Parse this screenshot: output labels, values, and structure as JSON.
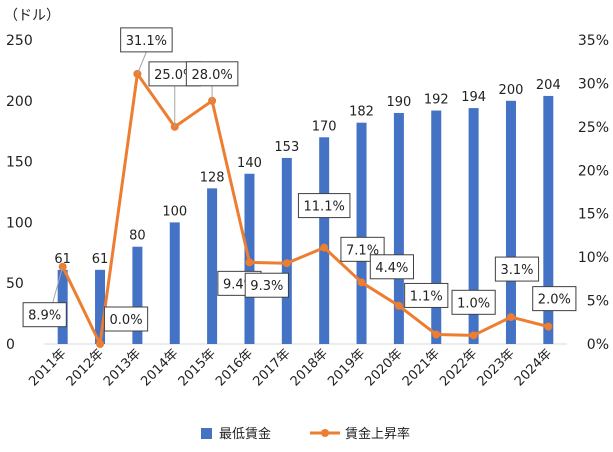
{
  "chart_data": {
    "type": "bar+line",
    "unit_label": "（ドル）",
    "categories": [
      "2011年",
      "2012年",
      "2013年",
      "2014年",
      "2015年",
      "2016年",
      "2017年",
      "2018年",
      "2019年",
      "2020年",
      "2021年",
      "2022年",
      "2023年",
      "2024年"
    ],
    "series": [
      {
        "name": "最低賃金",
        "type": "bar",
        "axis": "left",
        "color": "#4472C4",
        "values": [
          61,
          61,
          80,
          100,
          128,
          140,
          153,
          170,
          182,
          190,
          192,
          194,
          200,
          204
        ]
      },
      {
        "name": "賃金上昇率",
        "type": "line",
        "axis": "right",
        "color": "#ED7D31",
        "values": [
          8.9,
          0.0,
          31.1,
          25.0,
          28.0,
          9.4,
          9.3,
          11.1,
          7.1,
          4.4,
          1.1,
          1.0,
          3.1,
          2.0
        ],
        "labels": [
          "8.9%",
          "0.0%",
          "31.1%",
          "25.0%",
          "28.0%",
          "9.4%",
          "9.3%",
          "11.1%",
          "7.1%",
          "4.4%",
          "1.1%",
          "1.0%",
          "3.1%",
          "2.0%"
        ]
      }
    ],
    "y_left": {
      "min": 0,
      "max": 250,
      "step": 50,
      "ticks": [
        "0",
        "50",
        "100",
        "150",
        "200",
        "250"
      ]
    },
    "y_right": {
      "min": 0,
      "max": 35,
      "step": 5,
      "ticks": [
        "0%",
        "5%",
        "10%",
        "15%",
        "20%",
        "25%",
        "30%",
        "35%"
      ]
    },
    "legend": {
      "position": "bottom",
      "items": [
        "最低賃金",
        "賃金上昇率"
      ]
    },
    "grid": false
  }
}
